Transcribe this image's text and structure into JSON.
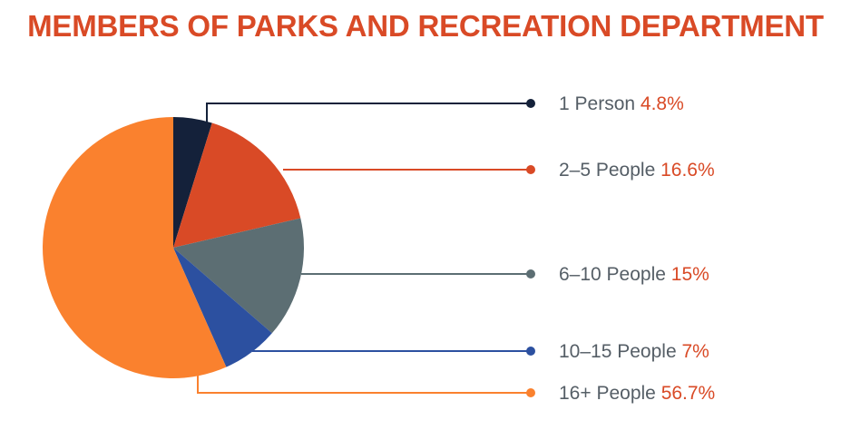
{
  "colors": {
    "title": "#d94a26",
    "label": "#555e66",
    "value": "#d94a26"
  },
  "chart_data": {
    "type": "pie",
    "title": "MEMBERS OF PARKS AND RECREATION DEPARTMENT",
    "slices": [
      {
        "label": "1 Person",
        "value": 4.8,
        "display": "4.8%",
        "color": "#14213a"
      },
      {
        "label": "2–5 People",
        "value": 16.6,
        "display": "16.6%",
        "color": "#d94a26"
      },
      {
        "label": "6–10 People",
        "value": 15,
        "display": "15%",
        "color": "#5c6e73"
      },
      {
        "label": "10–15 People",
        "value": 7,
        "display": "7%",
        "color": "#2c50a0"
      },
      {
        "label": "16+ People",
        "value": 56.7,
        "display": "56.7%",
        "color": "#fa812e"
      }
    ],
    "start_angle": "12 o'clock",
    "direction": "clockwise",
    "legend": "right"
  }
}
